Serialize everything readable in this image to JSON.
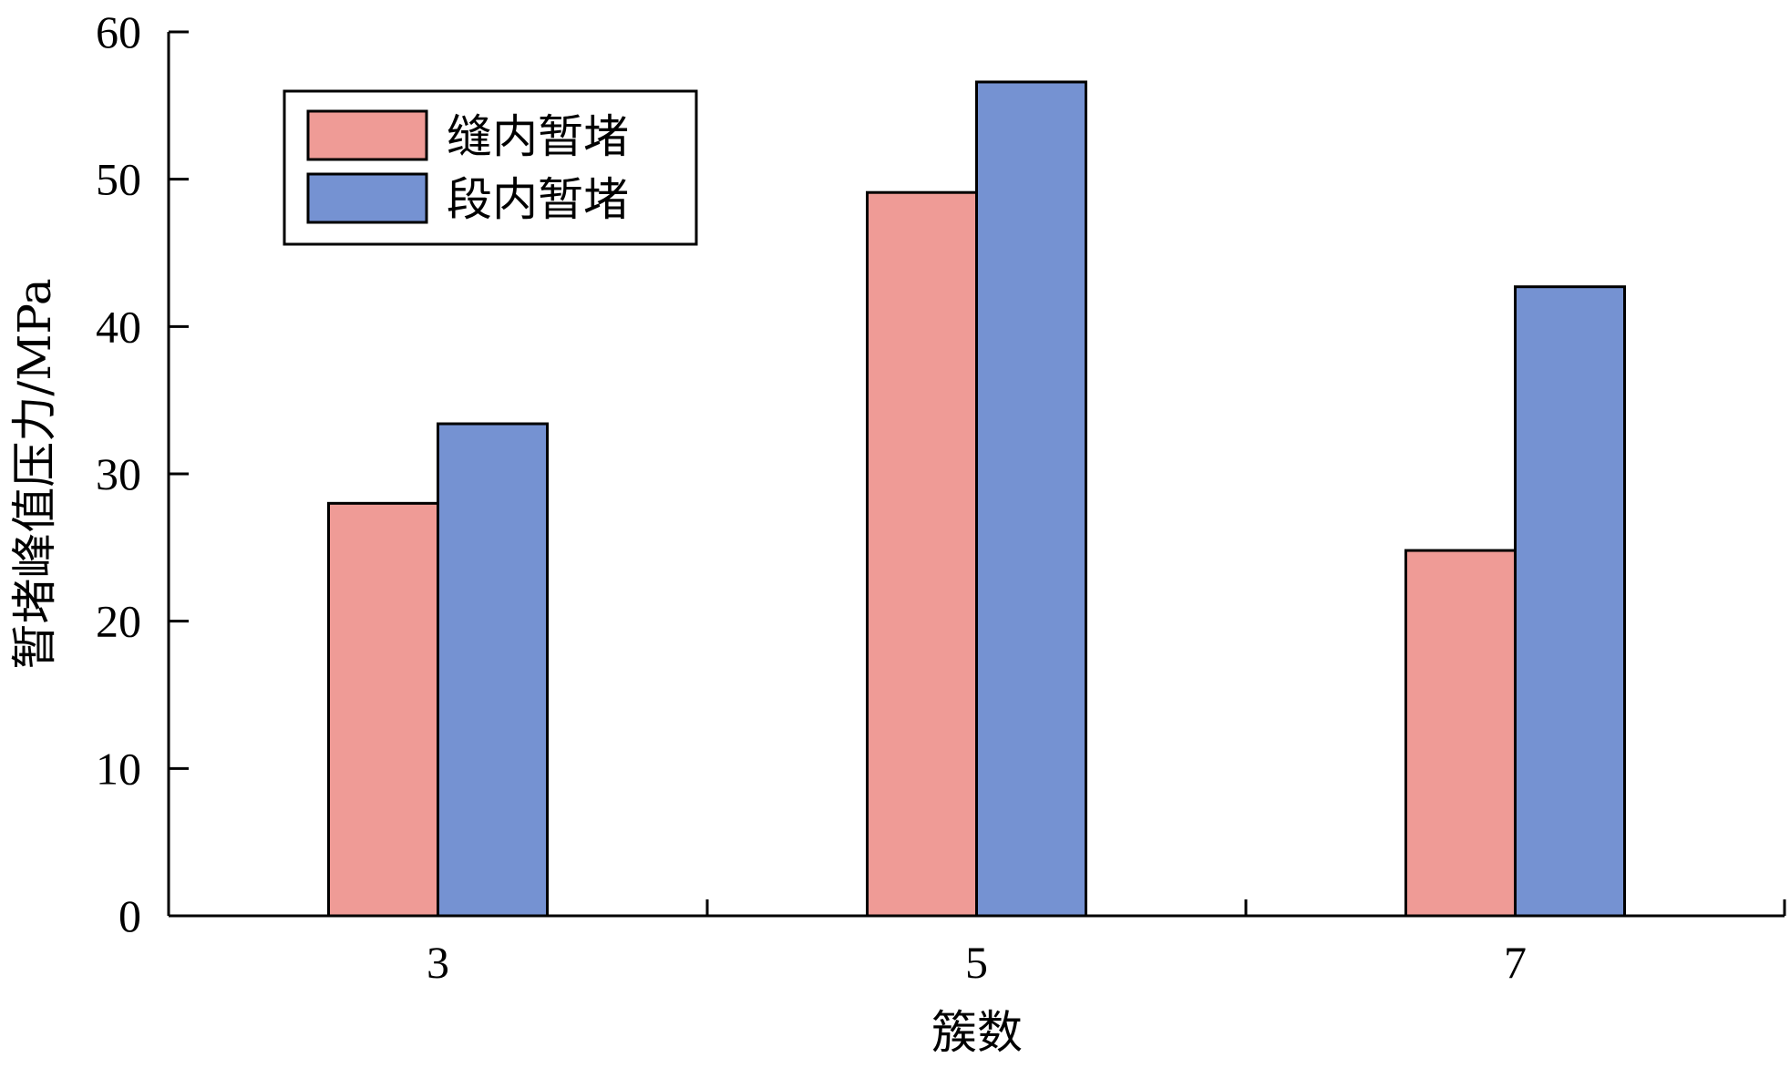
{
  "chart_data": {
    "type": "bar",
    "categories": [
      "3",
      "5",
      "7"
    ],
    "series": [
      {
        "name": "缝内暂堵",
        "values": [
          28.0,
          49.1,
          24.8
        ],
        "color": "#ef9b96"
      },
      {
        "name": "段内暂堵",
        "values": [
          33.4,
          56.6,
          42.7
        ],
        "color": "#7592d2"
      }
    ],
    "xlabel": "簇数",
    "ylabel": "暂堵峰值压力/MPa",
    "ylim": [
      0,
      60
    ],
    "yticks": [
      0,
      10,
      20,
      30,
      40,
      50,
      60
    ],
    "grid": false,
    "legend": "top-left"
  }
}
